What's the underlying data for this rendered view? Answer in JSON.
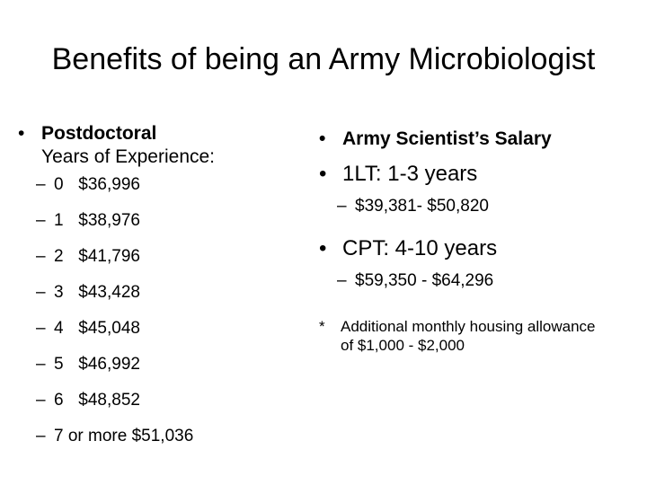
{
  "title": "Benefits of being an Army Microbiologist",
  "left": {
    "bullet": "•",
    "heading": "Postdoctoral",
    "subheading": "Years of Experience:",
    "items": [
      {
        "years": "0",
        "salary": "$36,996"
      },
      {
        "years": "1",
        "salary": "$38,976"
      },
      {
        "years": "2",
        "salary": "$41,796"
      },
      {
        "years": "3",
        "salary": "$43,428"
      },
      {
        "years": "4",
        "salary": "$45,048"
      },
      {
        "years": "5",
        "salary": "$46,992"
      },
      {
        "years": "6",
        "salary": "$48,852"
      }
    ],
    "last_item": "7 or more $51,036"
  },
  "right": {
    "bullet": "•",
    "heading": "Army Scientist’s Salary",
    "ranks": [
      {
        "label": "1LT: 1-3 years",
        "range": "$39,381- $50,820"
      },
      {
        "label": "CPT: 4-10 years",
        "range": "$59,350 - $64,296"
      }
    ],
    "note_marker": "*",
    "note": "Additional monthly housing allowance of $1,000 - $2,000"
  },
  "dash": "–"
}
